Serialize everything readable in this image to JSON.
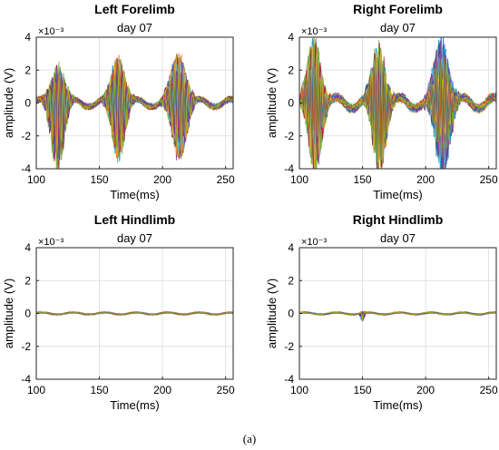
{
  "figure": {
    "caption": "(a)"
  },
  "chart_data": [
    {
      "type": "line",
      "title": "Left Forelimb",
      "subtitle": "day 07",
      "xlabel": "Time(ms)",
      "ylabel": "amplitude (V)",
      "y_exponent": "×10⁻³",
      "xlim": [
        100,
        256
      ],
      "ylim": [
        -4,
        4
      ],
      "x_ticks": [
        100,
        150,
        200,
        250
      ],
      "y_ticks": [
        4,
        2,
        0,
        -2,
        -4
      ],
      "grid": true,
      "series_count": 40,
      "bursts": [
        {
          "x_center": 117,
          "x_width": 8,
          "peak_amplitude": 2.6,
          "trough_amplitude": -4.0
        },
        {
          "x_center": 165,
          "x_width": 8,
          "peak_amplitude": 3.0,
          "trough_amplitude": -3.2
        },
        {
          "x_center": 213,
          "x_width": 9,
          "peak_amplitude": 3.1,
          "trough_amplitude": -3.3
        }
      ],
      "baseline": {
        "x": [
          100,
          256
        ],
        "y_range": [
          -0.4,
          0.4
        ]
      }
    },
    {
      "type": "line",
      "title": "Right Forelimb",
      "subtitle": "day 07",
      "xlabel": "Time(ms)",
      "ylabel": "amplitude (V)",
      "y_exponent": "×10⁻³",
      "xlim": [
        100,
        256
      ],
      "ylim": [
        -4,
        4
      ],
      "x_ticks": [
        100,
        150,
        200,
        250
      ],
      "y_ticks": [
        4,
        2,
        0,
        -2,
        -4
      ],
      "grid": true,
      "series_count": 40,
      "bursts": [
        {
          "x_center": 112,
          "x_width": 8,
          "peak_amplitude": 4.0,
          "trough_amplitude": -4.0
        },
        {
          "x_center": 163,
          "x_width": 8,
          "peak_amplitude": 3.6,
          "trough_amplitude": -4.0
        },
        {
          "x_center": 213,
          "x_width": 9,
          "peak_amplitude": 3.9,
          "trough_amplitude": -4.0
        }
      ],
      "baseline": {
        "x": [
          100,
          256
        ],
        "y_range": [
          -0.6,
          0.6
        ]
      }
    },
    {
      "type": "line",
      "title": "Left Hindlimb",
      "subtitle": "day 07",
      "xlabel": "Time(ms)",
      "ylabel": "amplitude (V)",
      "y_exponent": "×10⁻³",
      "xlim": [
        100,
        256
      ],
      "ylim": [
        -4,
        4
      ],
      "x_ticks": [
        100,
        150,
        200,
        250
      ],
      "y_ticks": [
        4,
        2,
        0,
        -2,
        -4
      ],
      "grid": true,
      "series_count": 40,
      "bursts": [],
      "baseline": {
        "x": [
          100,
          256
        ],
        "y_range": [
          -0.1,
          0.1
        ]
      }
    },
    {
      "type": "line",
      "title": "Right Hindlimb",
      "subtitle": "day 07",
      "xlabel": "Time(ms)",
      "ylabel": "amplitude (V)",
      "y_exponent": "×10⁻³",
      "xlim": [
        100,
        256
      ],
      "ylim": [
        -4,
        4
      ],
      "x_ticks": [
        100,
        150,
        200,
        250
      ],
      "y_ticks": [
        4,
        2,
        0,
        -2,
        -4
      ],
      "grid": true,
      "series_count": 40,
      "bursts": [
        {
          "x_center": 150,
          "x_width": 2,
          "peak_amplitude": 0.1,
          "trough_amplitude": -0.5
        }
      ],
      "baseline": {
        "x": [
          100,
          256
        ],
        "y_range": [
          -0.1,
          0.1
        ]
      }
    }
  ],
  "palette": [
    "#0072BD",
    "#D95319",
    "#EDB120",
    "#7E2F8E",
    "#77AC30",
    "#4DBEEE",
    "#A2142F"
  ]
}
